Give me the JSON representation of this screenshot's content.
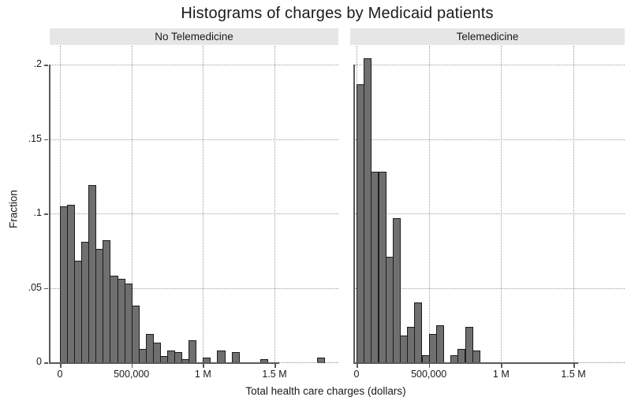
{
  "chart_data": {
    "type": "bar",
    "subtype": "faceted-histogram",
    "title": "Histograms of charges by Medicaid patients",
    "xlabel": "Total health care charges (dollars)",
    "ylabel": "Fraction",
    "bin_width_dollars": 50000,
    "ylim": [
      0,
      0.21
    ],
    "grid": "dotted",
    "x_ticks": [
      {
        "v": 0,
        "label": "0"
      },
      {
        "v": 500,
        "label": "500,000"
      },
      {
        "v": 1000,
        "label": "1 M"
      },
      {
        "v": 1500,
        "label": "1.5 M"
      }
    ],
    "y_ticks": [
      {
        "v": 0,
        "label": "0"
      },
      {
        "v": 0.05,
        "label": ".05"
      },
      {
        "v": 0.1,
        "label": ".1"
      },
      {
        "v": 0.15,
        "label": ".15"
      },
      {
        "v": 0.2,
        "label": ".2"
      }
    ],
    "panels": [
      {
        "label": "No Telemedicine",
        "bin_starts_thousands": [
          0,
          50,
          100,
          150,
          200,
          250,
          300,
          350,
          400,
          450,
          500,
          550,
          600,
          650,
          700,
          750,
          800,
          850,
          900,
          1000,
          1100,
          1200,
          1400,
          1800
        ],
        "fractions": [
          0.105,
          0.106,
          0.068,
          0.081,
          0.119,
          0.076,
          0.082,
          0.058,
          0.056,
          0.053,
          0.038,
          0.009,
          0.019,
          0.013,
          0.004,
          0.008,
          0.007,
          0.002,
          0.015,
          0.003,
          0.008,
          0.007,
          0.002,
          0.003
        ]
      },
      {
        "label": "Telemedicine",
        "bin_starts_thousands": [
          0,
          50,
          100,
          150,
          200,
          250,
          300,
          350,
          400,
          450,
          500,
          550,
          650,
          700,
          750,
          800
        ],
        "fractions": [
          0.187,
          0.204,
          0.128,
          0.128,
          0.071,
          0.097,
          0.018,
          0.024,
          0.04,
          0.005,
          0.019,
          0.025,
          0.005,
          0.009,
          0.024,
          0.008
        ]
      }
    ],
    "colors": {
      "bar_fill": "#6f6f6f",
      "bar_border": "#1c1c1c",
      "facet_header_bg": "#e6e6e6",
      "gridline": "#9c9c9c",
      "axis": "#5a5a5a",
      "text": "#1a1a1a"
    }
  }
}
